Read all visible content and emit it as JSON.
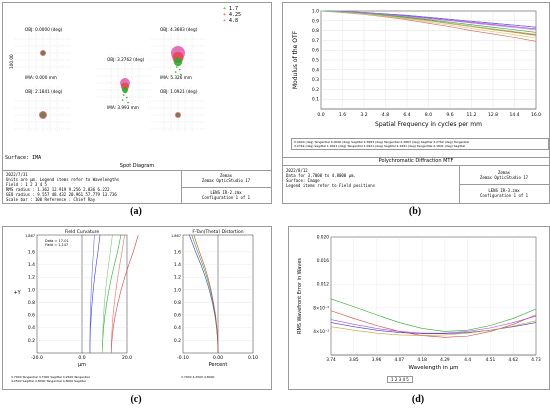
{
  "captions": {
    "a": "(a)",
    "b": "(b)",
    "c": "(c)",
    "d": "(d)"
  },
  "panel_a": {
    "legend_wavelengths": [
      "1.7",
      "4.25",
      "4.8"
    ],
    "spots": [
      {
        "obj": "OBJ: 0.0000 (deg)",
        "ima": "IMA: 0.000 mm"
      },
      {
        "obj": "OBJ: 3.2762 (deg)",
        "ima": "IMA: 3.993 mm"
      },
      {
        "obj": "OBJ: 4.3683 (deg)",
        "ima": "IMA: 5.326 mm"
      },
      {
        "obj": "OBJ: 2.1841 (deg)",
        "ima": "IMA: 2.661 mm"
      },
      {
        "obj": "OBJ: 1.0921 (deg)",
        "ima": "IMA: 1.330 mm"
      }
    ],
    "scale_label": "100.00",
    "surface": "Surface: IMA",
    "title": "Spot Diagram",
    "left_lines": [
      "2022/7/31",
      "Units are µm. Legend items refer to Wavelengths",
      "Field    :    1       2       3       4       5",
      "RMS radius :  1.362  12.919   9.256   2.836   6.222",
      "GEO radius :  9.557  48.432  20.961  57.779  13.736",
      "Scale bar  :  100      Reference  : Chief Ray"
    ],
    "right_top": [
      "Zemax",
      "Zemax OpticStudio 17"
    ],
    "right_bottom": [
      "LENS IR-2.zmx",
      "Configuration 1 of 1"
    ]
  },
  "panel_b": {
    "title": "Polychromatic Diffraction MTF",
    "ylabel": "Modulus of the OTF",
    "xlabel": "Spatial Frequency in cycles per mm",
    "legend_lines": [
      "0.0000 (deg) Tangential  0.0000 (deg) Sagittal  4.3683 (deg) Tangential  4.3683 (deg) Sagittal  3.2762 (deg) Tangential",
      "3.2762 (deg) Sagittal  1.0921 (deg) Tangential  1.0921 (deg) Sagittal  2.1841 (deg) Tangential  2.1841 (deg) Sagittal"
    ],
    "left_lines": [
      "2022/8/12",
      "Data for 3.7000 to 4.8000 µm.",
      "Surface: Image",
      "Legend items refer to Field positions"
    ],
    "right_top": [
      "Zemax",
      "Zemax OpticStudio 17"
    ],
    "right_bottom": [
      "LENS IR-3.zmx",
      "Configuration 1 of 1"
    ]
  },
  "panel_c": {
    "fc_title": "Field Curvature",
    "dist_title": "F-Tan(Theta) Distortion",
    "ylabel": "+Y",
    "fc_xlabel": "µm",
    "dist_xlabel": "Percent",
    "top_value": "1.867",
    "fc_info": [
      "Data = 17-01",
      "Field = 1.147"
    ],
    "legend_lines": [
      "3.7000 Tangential  3.7000 Sagittal  4.2500 Tangential",
      "4.2500 Sagittal  4.8000 Tangential  4.8000 Sagittal"
    ],
    "dist_legend": "3.7000  4.2500  4.8000"
  },
  "panel_d": {
    "ylabel": "RMS Wavefront Error in Waves",
    "xlabel": "Wavelength in µm",
    "legend": "1  2  3  4  5"
  },
  "chart_data": [
    {
      "type": "scatter",
      "title": "Spot Diagram",
      "series": [
        {
          "name": "1.7",
          "color": "#2aa82a"
        },
        {
          "name": "4.25",
          "color": "#e04848"
        },
        {
          "name": "4.8",
          "color": "#e05ab0"
        }
      ],
      "fields": [
        "0.0000 (deg)",
        "3.2762 (deg)",
        "4.3683 (deg)",
        "2.1841 (deg)",
        "1.0921 (deg)"
      ],
      "rms_radius": [
        1.362,
        12.919,
        9.256,
        2.836,
        6.222
      ],
      "geo_radius": [
        9.557,
        48.432,
        20.961,
        57.779,
        13.736
      ],
      "scale_bar": 100
    },
    {
      "type": "line",
      "title": "Polychromatic Diffraction MTF",
      "xlabel": "Spatial Frequency in cycles per mm",
      "ylabel": "Modulus of the OTF",
      "xlim": [
        0,
        16
      ],
      "ylim": [
        0,
        1.0
      ],
      "x_ticks": [
        0,
        1.6,
        3.2,
        4.8,
        6.4,
        8.0,
        9.6,
        11.2,
        12.8,
        14.4,
        16.0
      ],
      "y_ticks": [
        0.1,
        0.2,
        0.3,
        0.4,
        0.5,
        0.6,
        0.7,
        0.8,
        0.9,
        1.0
      ],
      "x": [
        0,
        1.6,
        3.2,
        4.8,
        6.4,
        8.0,
        9.6,
        11.2,
        12.8,
        14.4,
        16.0
      ],
      "series": [
        {
          "name": "0.0000 (deg) Tangential",
          "color": "#3b3bd0",
          "values": [
            1.0,
            0.995,
            0.985,
            0.97,
            0.955,
            0.935,
            0.915,
            0.895,
            0.875,
            0.855,
            0.835
          ]
        },
        {
          "name": "0.0000 (deg) Sagittal",
          "color": "#6d6de6",
          "values": [
            1.0,
            0.995,
            0.985,
            0.97,
            0.955,
            0.935,
            0.915,
            0.895,
            0.875,
            0.855,
            0.835
          ]
        },
        {
          "name": "4.3683 (deg) Tangential",
          "color": "#d04040",
          "values": [
            1.0,
            0.99,
            0.975,
            0.955,
            0.93,
            0.905,
            0.875,
            0.845,
            0.815,
            0.785,
            0.755
          ]
        },
        {
          "name": "4.3683 (deg) Sagittal",
          "color": "#e07070",
          "values": [
            1.0,
            0.985,
            0.965,
            0.94,
            0.91,
            0.875,
            0.84,
            0.8,
            0.765,
            0.73,
            0.69
          ]
        },
        {
          "name": "3.2762 (deg) Tangential",
          "color": "#cfa63a",
          "values": [
            1.0,
            0.99,
            0.97,
            0.95,
            0.925,
            0.9,
            0.87,
            0.84,
            0.81,
            0.78,
            0.75
          ]
        },
        {
          "name": "3.2762 (deg) Sagittal",
          "color": "#e6c86a",
          "values": [
            1.0,
            0.988,
            0.968,
            0.945,
            0.918,
            0.888,
            0.855,
            0.823,
            0.79,
            0.758,
            0.725
          ]
        },
        {
          "name": "1.0921 (deg) Tangential",
          "color": "#b04ad0",
          "values": [
            1.0,
            0.993,
            0.982,
            0.966,
            0.948,
            0.928,
            0.906,
            0.884,
            0.862,
            0.84,
            0.818
          ]
        },
        {
          "name": "1.0921 (deg) Sagittal",
          "color": "#c97ee0",
          "values": [
            1.0,
            0.993,
            0.98,
            0.963,
            0.944,
            0.922,
            0.9,
            0.877,
            0.854,
            0.831,
            0.808
          ]
        },
        {
          "name": "2.1841 (deg) Tangential",
          "color": "#4aa84a",
          "values": [
            1.0,
            0.99,
            0.976,
            0.958,
            0.936,
            0.912,
            0.886,
            0.86,
            0.834,
            0.808,
            0.782
          ]
        },
        {
          "name": "2.1841 (deg) Sagittal",
          "color": "#8cc88c",
          "values": [
            1.0,
            0.989,
            0.972,
            0.952,
            0.928,
            0.902,
            0.874,
            0.846,
            0.818,
            0.79,
            0.762
          ]
        }
      ]
    },
    {
      "type": "line",
      "title": "Field Curvature",
      "xlabel": "µm",
      "ylabel": "+Y",
      "xlim": [
        -20,
        20
      ],
      "ylim": [
        0,
        1.867
      ],
      "x_ticks": [
        -20,
        0,
        20
      ],
      "y_ticks": [
        0.2,
        0.4,
        0.6,
        0.8,
        1.0,
        1.2,
        1.4,
        1.6
      ],
      "y": [
        0,
        0.2,
        0.4,
        0.6,
        0.8,
        1.0,
        1.2,
        1.4,
        1.6,
        1.867
      ],
      "series": [
        {
          "name": "3.7000 Tangential",
          "color": "#3b3bd0",
          "values": [
            3.5,
            3.6,
            3.8,
            4.1,
            4.5,
            5.0,
            5.6,
            6.3,
            7.1,
            8.0
          ]
        },
        {
          "name": "3.7000 Sagittal",
          "color": "#6d6de6",
          "values": [
            3.5,
            3.5,
            3.6,
            3.7,
            3.9,
            4.1,
            4.4,
            4.7,
            5.1,
            5.5
          ]
        },
        {
          "name": "4.2500 Tangential",
          "color": "#2aa82a",
          "values": [
            9.0,
            9.2,
            9.6,
            10.2,
            11.0,
            12.0,
            13.1,
            14.4,
            15.8,
            17.3
          ]
        },
        {
          "name": "4.2500 Sagittal",
          "color": "#7cc87c",
          "values": [
            9.0,
            9.1,
            9.3,
            9.6,
            10.0,
            10.5,
            11.1,
            11.8,
            12.6,
            13.5
          ]
        },
        {
          "name": "4.8000 Tangential",
          "color": "#d04040",
          "values": [
            13.0,
            13.3,
            13.9,
            14.8,
            16.0,
            17.4,
            19.0,
            20.8,
            22.8,
            25.0
          ]
        },
        {
          "name": "4.8000 Sagittal",
          "color": "#e07070",
          "values": [
            13.0,
            13.1,
            13.4,
            13.8,
            14.4,
            15.1,
            15.9,
            16.8,
            17.8,
            18.9
          ]
        }
      ]
    },
    {
      "type": "line",
      "title": "F-Tan(Theta) Distortion",
      "xlabel": "Percent",
      "xlim": [
        -0.1,
        0.1
      ],
      "ylim": [
        0,
        1.867
      ],
      "x_ticks": [
        -0.1,
        0,
        0.1
      ],
      "y": [
        0,
        0.2,
        0.4,
        0.6,
        0.8,
        1.0,
        1.2,
        1.4,
        1.6,
        1.867
      ],
      "series": [
        {
          "name": "3.7000",
          "color": "#3b3bd0",
          "values": [
            0,
            -0.001,
            -0.004,
            -0.009,
            -0.016,
            -0.025,
            -0.036,
            -0.049,
            -0.064,
            -0.082
          ]
        },
        {
          "name": "4.2500",
          "color": "#2aa82a",
          "values": [
            0,
            -0.001,
            -0.004,
            -0.008,
            -0.014,
            -0.022,
            -0.032,
            -0.044,
            -0.058,
            -0.075
          ]
        },
        {
          "name": "4.8000",
          "color": "#d04040",
          "values": [
            0,
            -0.001,
            -0.003,
            -0.007,
            -0.013,
            -0.02,
            -0.029,
            -0.04,
            -0.053,
            -0.069
          ]
        }
      ]
    },
    {
      "type": "line",
      "xlabel": "Wavelength in µm",
      "ylabel": "RMS Wavefront Error in Waves",
      "xlim": [
        3.74,
        4.73
      ],
      "ylim": [
        0,
        0.02
      ],
      "x_ticks": [
        3.74,
        3.85,
        3.96,
        4.07,
        4.18,
        4.29,
        4.4,
        4.51,
        4.62,
        4.73
      ],
      "x_tick_labels": [
        "3.74",
        "3.85",
        "3.96",
        "4.07",
        "4.18",
        "4.29",
        "4.4",
        "4.51",
        "4.62",
        "4.73"
      ],
      "y_ticks": [
        0.004,
        0.008,
        0.012,
        0.016,
        0.02
      ],
      "y_tick_labels": [
        "4×10⁻³",
        "8×10⁻³",
        "0.012",
        "0.016",
        "0.020"
      ],
      "x": [
        3.74,
        3.85,
        3.96,
        4.07,
        4.18,
        4.29,
        4.4,
        4.51,
        4.62,
        4.73
      ],
      "series": [
        {
          "name": "1",
          "color": "#3b3bd0",
          "values": [
            0.0055,
            0.0048,
            0.0042,
            0.0038,
            0.0036,
            0.0036,
            0.0038,
            0.0042,
            0.0048,
            0.0055
          ]
        },
        {
          "name": "2",
          "color": "#2aa82a",
          "values": [
            0.0095,
            0.0082,
            0.0068,
            0.0055,
            0.0045,
            0.004,
            0.0042,
            0.005,
            0.0062,
            0.0078
          ]
        },
        {
          "name": "3",
          "color": "#d04040",
          "values": [
            0.0075,
            0.0062,
            0.005,
            0.004,
            0.0033,
            0.003,
            0.0032,
            0.004,
            0.0052,
            0.0068
          ]
        },
        {
          "name": "4",
          "color": "#c9a23a",
          "values": [
            0.0048,
            0.0042,
            0.0037,
            0.0034,
            0.0033,
            0.0034,
            0.0037,
            0.0042,
            0.0049,
            0.0058
          ]
        },
        {
          "name": "5",
          "color": "#b04ad0",
          "values": [
            0.006,
            0.0052,
            0.0045,
            0.004,
            0.0037,
            0.0037,
            0.004,
            0.0046,
            0.0055,
            0.0066
          ]
        }
      ]
    }
  ]
}
